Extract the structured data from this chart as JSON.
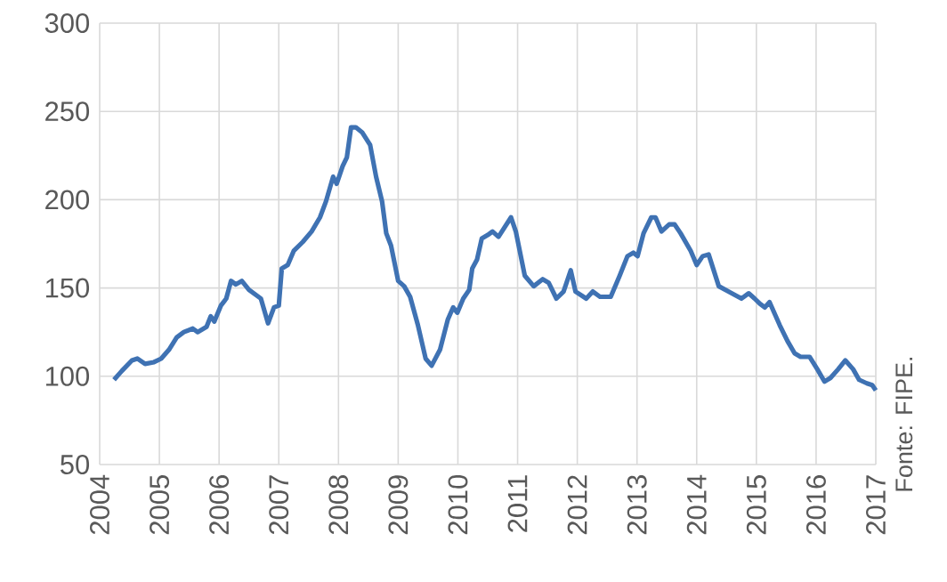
{
  "chart_data": {
    "type": "line",
    "annotations": [
      "Fonte: FIPE."
    ],
    "x": [
      2004.24,
      2004.37,
      2004.54,
      2004.63,
      2004.76,
      2004.91,
      2005.03,
      2005.16,
      2005.29,
      2005.41,
      2005.56,
      2005.64,
      2005.79,
      2005.86,
      2005.92,
      2006.03,
      2006.12,
      2006.2,
      2006.28,
      2006.38,
      2006.5,
      2006.7,
      2006.82,
      2006.92,
      2007.0,
      2007.05,
      2007.15,
      2007.25,
      2007.4,
      2007.55,
      2007.69,
      2007.79,
      2007.91,
      2007.97,
      2008.07,
      2008.14,
      2008.21,
      2008.29,
      2008.4,
      2008.53,
      2008.63,
      2008.73,
      2008.8,
      2008.88,
      2009.0,
      2009.1,
      2009.2,
      2009.33,
      2009.46,
      2009.56,
      2009.7,
      2009.83,
      2009.92,
      2009.99,
      2010.09,
      2010.19,
      2010.24,
      2010.32,
      2010.4,
      2010.5,
      2010.58,
      2010.68,
      2010.89,
      2010.97,
      2011.12,
      2011.27,
      2011.42,
      2011.52,
      2011.65,
      2011.77,
      2011.89,
      2011.97,
      2012.15,
      2012.26,
      2012.38,
      2012.56,
      2012.71,
      2012.84,
      2012.94,
      2013.01,
      2013.11,
      2013.24,
      2013.31,
      2013.41,
      2013.54,
      2013.63,
      2013.73,
      2013.9,
      2014.0,
      2014.1,
      2014.2,
      2014.37,
      2014.53,
      2014.75,
      2014.87,
      2014.97,
      2015.06,
      2015.14,
      2015.22,
      2015.39,
      2015.52,
      2015.64,
      2015.74,
      2015.89,
      2016.02,
      2016.14,
      2016.24,
      2016.37,
      2016.49,
      2016.62,
      2016.72,
      2016.85,
      2016.94,
      2017.0
    ],
    "series": [
      {
        "color": "#3f72b3",
        "values": [
          98,
          103,
          109,
          110,
          107,
          108,
          110,
          115,
          122,
          125,
          127,
          125,
          128,
          134,
          131,
          140,
          144,
          154,
          152,
          154,
          149,
          144,
          130,
          139,
          140,
          161,
          163,
          171,
          176,
          182,
          190,
          199,
          213,
          209,
          219,
          224,
          241,
          241,
          238,
          231,
          213,
          199,
          181,
          174,
          154,
          151,
          145,
          129,
          110,
          106,
          115,
          132,
          139,
          136,
          144,
          149,
          161,
          166,
          178,
          180,
          182,
          179,
          190,
          182,
          157,
          151,
          155,
          153,
          144,
          148,
          160,
          148,
          144,
          148,
          145,
          145,
          157,
          168,
          170,
          168,
          181,
          190,
          190,
          182,
          186,
          186,
          181,
          171,
          163,
          168,
          169,
          151,
          148,
          144,
          147,
          144,
          141,
          139,
          142,
          129,
          120,
          113,
          111,
          111,
          104,
          97,
          99,
          104,
          109,
          104,
          98,
          96,
          95,
          92
        ]
      }
    ],
    "xlim": [
      2004,
      2017
    ],
    "ylim": [
      50,
      300
    ],
    "xticks": [
      2004,
      2005,
      2006,
      2007,
      2008,
      2009,
      2010,
      2011,
      2012,
      2013,
      2014,
      2015,
      2016,
      2017
    ],
    "yticks": [
      50,
      100,
      150,
      200,
      250,
      300
    ],
    "grid": true,
    "marker": "none",
    "line_style": "solid"
  }
}
